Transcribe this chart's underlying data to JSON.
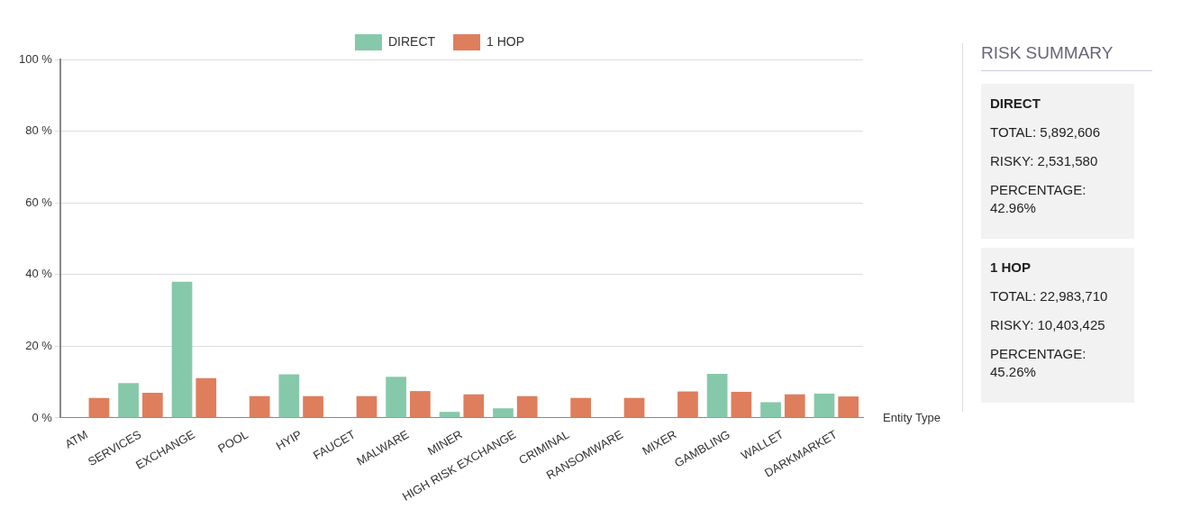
{
  "chart_data": [
    {
      "type": "bar",
      "categories": [
        "ATM",
        "SERVICES",
        "EXCHANGE",
        "POOL",
        "HYIP",
        "FAUCET",
        "MALWARE",
        "MINER",
        "HIGH RISK EXCHANGE",
        "CRIMINAL",
        "RANSOMWARE",
        "MIXER",
        "GAMBLING",
        "WALLET",
        "DARKMARKET"
      ],
      "series": [
        {
          "name": "DIRECT",
          "color": "#86c9aa",
          "values": [
            0,
            9.7,
            38,
            null,
            12.2,
            null,
            11.5,
            1.7,
            2.7,
            0,
            0,
            null,
            12.3,
            4.4,
            6.8
          ]
        },
        {
          "name": "1 HOP",
          "color": "#de7e5c",
          "values": [
            5.6,
            7,
            11.1,
            6.1,
            6.1,
            6.1,
            7.5,
            6.6,
            6.1,
            5.6,
            5.6,
            7.4,
            7.3,
            6.6,
            6
          ]
        }
      ],
      "xlabel": "Entity Type",
      "ylim": [
        0,
        100
      ],
      "yticks": [
        {
          "value": 0,
          "label": "0 %"
        },
        {
          "value": 20,
          "label": "20 %"
        },
        {
          "value": 40,
          "label": "40 %"
        },
        {
          "value": 60,
          "label": "60 %"
        },
        {
          "value": 80,
          "label": "80 %"
        },
        {
          "value": 100,
          "label": "100 %"
        }
      ],
      "grid": "y",
      "legend": "top"
    },
    {
      "type": "other",
      "title": "RISK SUMMARY",
      "annotations": [
        "DIRECT",
        "TOTAL: 5,892,606",
        "RISKY: 2,531,580",
        "PERCENTAGE: 42.96%",
        "1 HOP",
        "TOTAL: 22,983,710",
        "RISKY: 10,403,425",
        "PERCENTAGE: 45.26%"
      ]
    }
  ]
}
